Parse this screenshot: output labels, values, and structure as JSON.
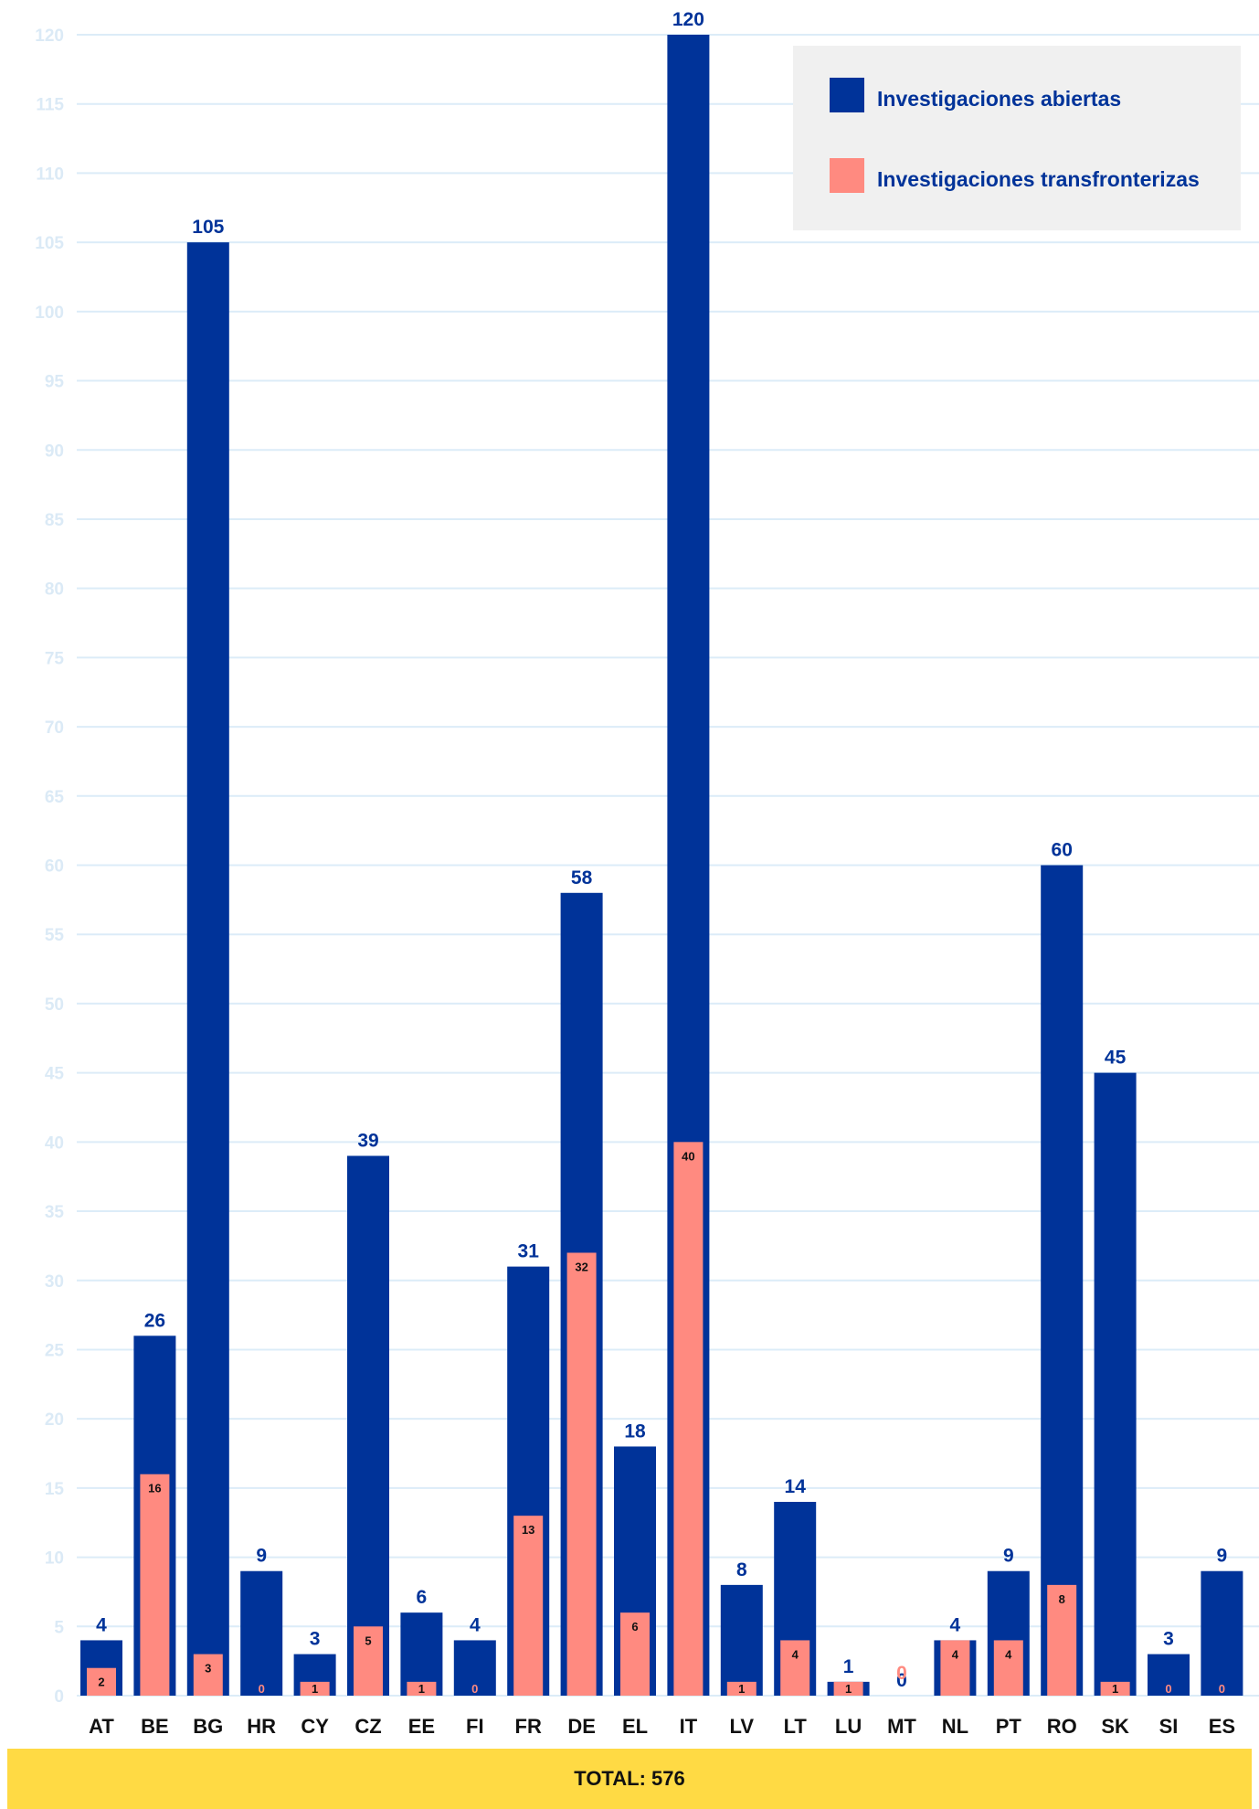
{
  "chart_data": {
    "type": "bar",
    "categories": [
      "AT",
      "BE",
      "BG",
      "HR",
      "CY",
      "CZ",
      "EE",
      "FI",
      "FR",
      "DE",
      "EL",
      "IT",
      "LV",
      "LT",
      "LU",
      "MT",
      "NL",
      "PT",
      "RO",
      "SK",
      "SI",
      "ES"
    ],
    "series": [
      {
        "name": "Investigaciones abiertas",
        "color": "#003399",
        "values": [
          4,
          26,
          105,
          9,
          3,
          39,
          6,
          4,
          31,
          58,
          18,
          120,
          8,
          14,
          1,
          0,
          4,
          9,
          60,
          45,
          3,
          9
        ]
      },
      {
        "name": "Investigaciones transfronterizas",
        "color": "#ff8a80",
        "values": [
          2,
          16,
          3,
          0,
          1,
          5,
          1,
          0,
          13,
          32,
          6,
          40,
          1,
          4,
          1,
          0,
          4,
          4,
          8,
          1,
          0,
          0
        ]
      }
    ],
    "ylim": [
      0,
      120
    ],
    "yticks": [
      0,
      5,
      10,
      15,
      20,
      25,
      30,
      35,
      40,
      45,
      50,
      55,
      60,
      65,
      70,
      75,
      80,
      85,
      90,
      95,
      100,
      105,
      110,
      115,
      120
    ],
    "grid": true,
    "legend_position": "top-right",
    "xlabel": "",
    "ylabel": ""
  },
  "footer": {
    "total_label": "TOTAL: 576"
  }
}
